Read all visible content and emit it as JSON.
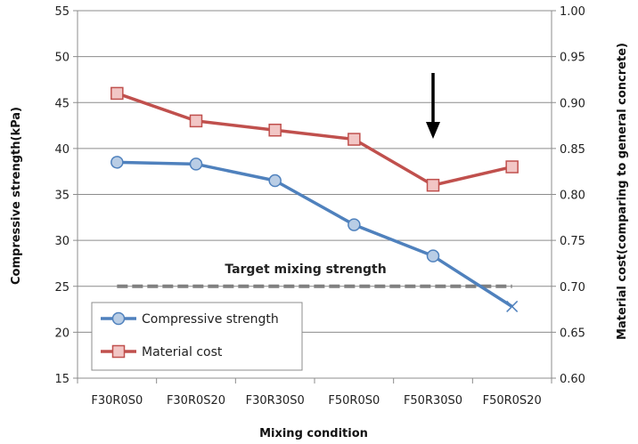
{
  "chart_data": {
    "type": "line",
    "categories": [
      "F30R0S0",
      "F30R0S20",
      "F30R30S0",
      "F50R0S0",
      "F50R30S0",
      "F50R0S20"
    ],
    "xlabel": "Mixing condition",
    "ylabel_left": "Compressive strength(kPa)",
    "ylabel_right": "Material cost(comparing to general concrete)",
    "ylim_left": [
      15,
      55
    ],
    "yticks_left": [
      "15",
      "20",
      "25",
      "30",
      "35",
      "40",
      "45",
      "50",
      "55"
    ],
    "ylim_right": [
      0.6,
      1.0
    ],
    "yticks_right": [
      "0.60",
      "0.65",
      "0.70",
      "0.75",
      "0.80",
      "0.85",
      "0.90",
      "0.95",
      "1.00"
    ],
    "grid": true,
    "legend_position": "bottom-left",
    "series": [
      {
        "name": "Compressive strength",
        "axis": "left",
        "color": "#4f81bd",
        "marker": "circle",
        "values": [
          38.5,
          38.3,
          36.5,
          31.7,
          28.3,
          22.8
        ]
      },
      {
        "name": "Material cost",
        "axis": "right",
        "color": "#c0504d",
        "marker": "square",
        "values": [
          0.91,
          0.88,
          0.87,
          0.86,
          0.81,
          0.83
        ]
      }
    ],
    "target_line": {
      "label": "Target mixing strength",
      "value": 25,
      "axis": "left",
      "color": "#808080",
      "style": "dashed"
    },
    "arrow": {
      "category_index": 4,
      "color": "#000000"
    }
  }
}
